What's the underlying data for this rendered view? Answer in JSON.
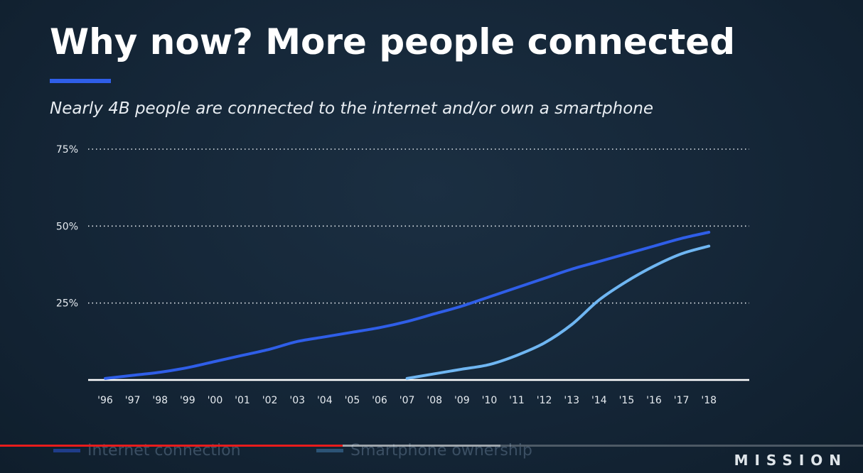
{
  "slide": {
    "title": "Why now? More people connected",
    "subtitle": "Nearly 4B people are connected to the internet and/or own a smartphone",
    "brand": "MISSION"
  },
  "colors": {
    "background": "#142536",
    "accent": "#2f5ee8",
    "series_internet": "#2f5ee8",
    "series_smartphone": "#6fb6f2"
  },
  "video": {
    "progress_fraction": 0.397,
    "buffered_fraction": 0.58
  },
  "chart_data": {
    "type": "line",
    "categories": [
      "'96",
      "'97",
      "'98",
      "'99",
      "'00",
      "'01",
      "'02",
      "'03",
      "'04",
      "'05",
      "'06",
      "'07",
      "'08",
      "'09",
      "'10",
      "'11",
      "'12",
      "'13",
      "'14",
      "'15",
      "'16",
      "'17",
      "'18"
    ],
    "ylim": [
      0,
      75
    ],
    "yticks": [
      25,
      50,
      75
    ],
    "ytick_labels": [
      "25%",
      "50%",
      "75%"
    ],
    "grid": true,
    "legend_placement": "bottom-left",
    "series": [
      {
        "name": "Internet connection",
        "x": [
          "'96",
          "'97",
          "'98",
          "'99",
          "'00",
          "'01",
          "'02",
          "'03",
          "'04",
          "'05",
          "'06",
          "'07",
          "'08",
          "'09",
          "'10",
          "'11",
          "'12",
          "'13",
          "'14",
          "'15",
          "'16",
          "'17",
          "'18"
        ],
        "values": [
          0.5,
          1.5,
          2.5,
          4,
          6,
          8,
          10,
          12.5,
          14,
          15.5,
          17,
          19,
          21.5,
          24,
          27,
          30,
          33,
          36,
          38.5,
          41,
          43.5,
          46,
          48
        ],
        "color": "#2f5ee8"
      },
      {
        "name": "Smartphone ownership",
        "x": [
          "'07",
          "'08",
          "'09",
          "'10",
          "'11",
          "'12",
          "'13",
          "'14",
          "'15",
          "'16",
          "'17",
          "'18"
        ],
        "values": [
          0.5,
          2,
          3.5,
          5,
          8,
          12,
          18,
          26,
          32,
          37,
          41,
          43.5
        ],
        "color": "#6fb6f2"
      }
    ]
  }
}
